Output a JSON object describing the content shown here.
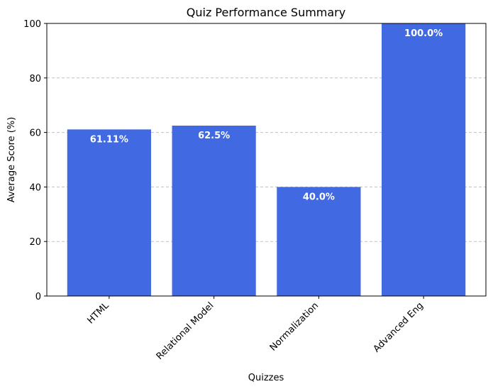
{
  "chart_data": {
    "type": "bar",
    "title": "Quiz Performance Summary",
    "xlabel": "Quizzes",
    "ylabel": "Average Score (%)",
    "categories": [
      "HTML",
      "Relational Model",
      "Normalization",
      "Advanced Eng"
    ],
    "values": [
      61.11,
      62.5,
      40.0,
      100.0
    ],
    "value_labels": [
      "61.11%",
      "62.5%",
      "40.0%",
      "100.0%"
    ],
    "ylim": [
      0,
      100
    ],
    "yticks": [
      "0",
      "20",
      "40",
      "60",
      "80",
      "100"
    ],
    "grid": "y-axis dashed",
    "bar_color": "#4169e1"
  }
}
